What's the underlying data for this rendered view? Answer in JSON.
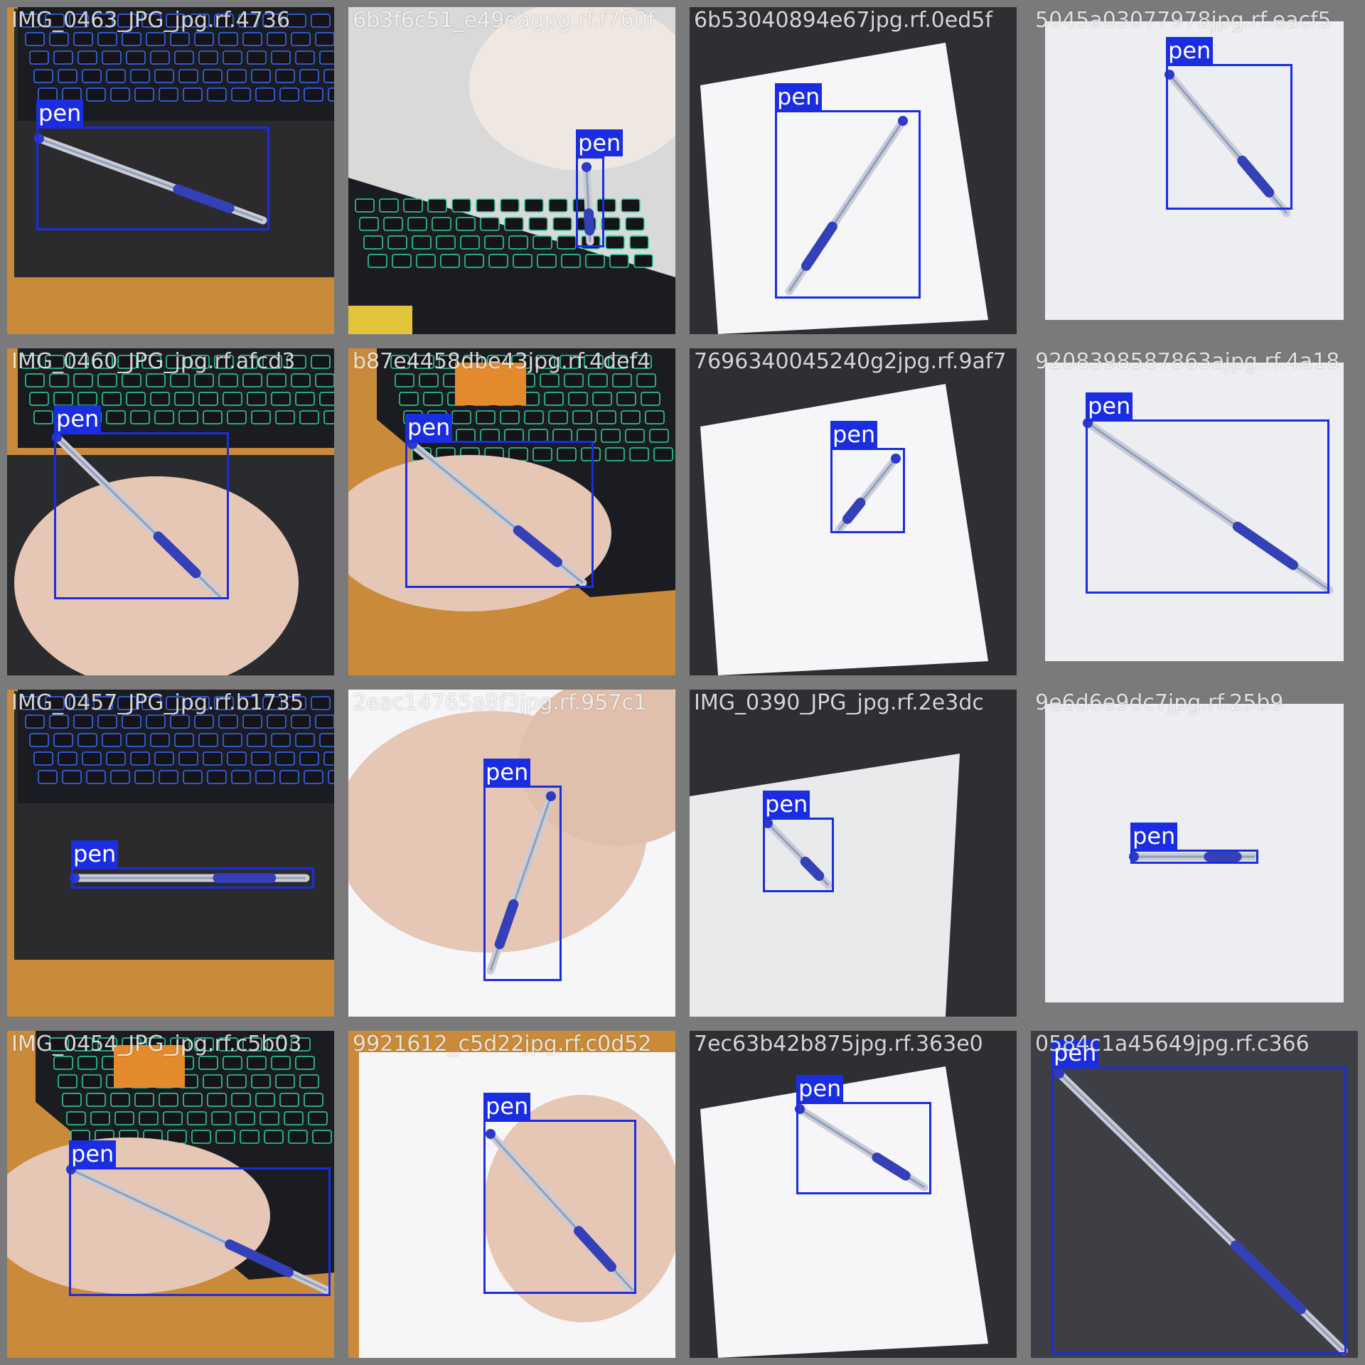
{
  "colors": {
    "box": "#1a2de0",
    "label_text": "#ffffff",
    "background": "#7a7a7a"
  },
  "tiles": [
    {
      "filename": "IMG_0463_JPG_jpg.rf.4736",
      "scene": "keyboard-blue",
      "detection": {
        "class": "pen"
      }
    },
    {
      "filename": "6b3f6c51_e49eagpg.rf.f760f",
      "scene": "fist-keyboard",
      "detection": {
        "class": "pen"
      }
    },
    {
      "filename": "6b53040894e67jpg.rf.0ed5f",
      "scene": "paper-desk",
      "detection": {
        "class": "pen"
      }
    },
    {
      "filename": "5045a03077978jpg.rf.eacf5",
      "scene": "paper-flat",
      "detection": {
        "class": "pen"
      }
    },
    {
      "filename": "IMG_0460_JPG_jpg.rf.afcd3",
      "scene": "keyboard-green-hand",
      "detection": {
        "class": "pen"
      }
    },
    {
      "filename": "b87e4458dbe43jpg.rf.4def4",
      "scene": "keyboard-orange",
      "detection": {
        "class": "pen"
      }
    },
    {
      "filename": "7696340045240g2jpg.rf.9af7",
      "scene": "paper-desk",
      "detection": {
        "class": "pen"
      }
    },
    {
      "filename": "9208398587863ajpg.rf.4a18",
      "scene": "paper-flat",
      "detection": {
        "class": "pen"
      }
    },
    {
      "filename": "IMG_0457_JPG_jpg.rf.b1735",
      "scene": "keyboard-blue",
      "detection": {
        "class": "pen"
      }
    },
    {
      "filename": "2eac14765a8f3jpg.rf.957c1",
      "scene": "hand-white",
      "detection": {
        "class": "pen"
      }
    },
    {
      "filename": "IMG_0390_JPG_jpg.rf.2e3dc",
      "scene": "paper-dark",
      "detection": {
        "class": "pen"
      }
    },
    {
      "filename": "9e6d6e9dc7jpg.rf.25b9",
      "scene": "paper-flat",
      "detection": {
        "class": "pen"
      }
    },
    {
      "filename": "IMG_0454_JPG_jpg.rf.c5b03",
      "scene": "keyboard-orange",
      "detection": {
        "class": "pen"
      }
    },
    {
      "filename": "9921612_c5d22jpg.rf.c0d52",
      "scene": "paper-hand",
      "detection": {
        "class": "pen"
      }
    },
    {
      "filename": "7ec63b42b875jpg.rf.363e0",
      "scene": "paper-desk",
      "detection": {
        "class": "pen"
      }
    },
    {
      "filename": "0584c1a45649jpg.rf.c366",
      "scene": "closeup-dark",
      "detection": {
        "class": "pen"
      }
    }
  ]
}
